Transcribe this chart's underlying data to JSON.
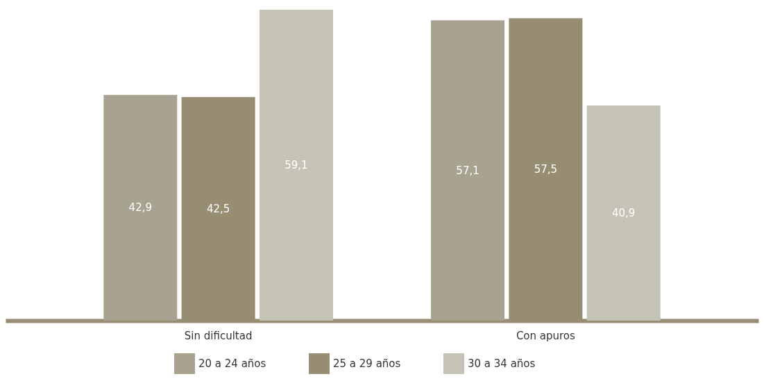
{
  "chart_data": {
    "type": "bar",
    "categories": [
      "Sin dificultad",
      "Con apuros"
    ],
    "series": [
      {
        "name": "20 a 24 años",
        "color": "#a8a290",
        "values": [
          42.9,
          57.1
        ],
        "value_labels": [
          "42,9",
          "57,1"
        ]
      },
      {
        "name": "25 a 29 años",
        "color": "#978d72",
        "values": [
          42.5,
          57.5
        ],
        "value_labels": [
          "42,5",
          "57,5"
        ]
      },
      {
        "name": "30 a 34 años",
        "color": "#c5c3b6",
        "values": [
          59.1,
          40.9
        ],
        "value_labels": [
          "59,1",
          "40,9"
        ]
      }
    ],
    "legend": "bottom",
    "grid": false
  }
}
